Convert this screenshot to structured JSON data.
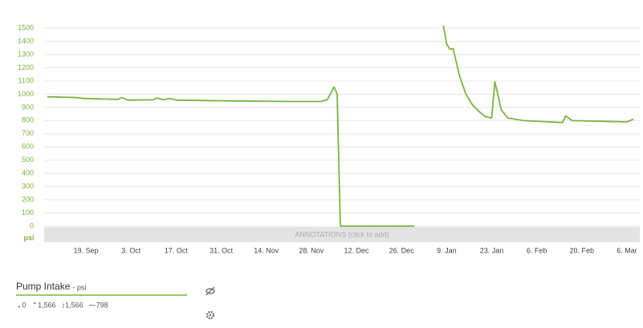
{
  "chart_data": {
    "type": "line",
    "x": [
      "7. Sep",
      "16. Sep",
      "18. Sep",
      "29. Sep",
      "30. Sep",
      "2. Oct",
      "10. Oct",
      "11. Oct",
      "13. Oct",
      "15. Oct",
      "17. Oct",
      "1. Nov",
      "20. Nov",
      "1. Dec",
      "3. Dec",
      "5. Dec",
      "6. Dec",
      "7. Dec",
      "30. Dec",
      "3. Jan",
      "8. Jan",
      "9. Jan",
      "10. Jan",
      "11. Jan",
      "13. Jan",
      "15. Jan",
      "17. Jan",
      "19. Jan",
      "21. Jan",
      "23. Jan",
      "24. Jan",
      "26. Jan",
      "28. Jan",
      "2. Feb",
      "10. Feb",
      "14. Feb",
      "15. Feb",
      "17. Feb",
      "26. Feb",
      "6. Mar",
      "8. Mar"
    ],
    "series": [
      {
        "name": "Pump Intake",
        "color": "#7cb342",
        "values": [
          980,
          975,
          968,
          960,
          975,
          955,
          958,
          972,
          958,
          968,
          955,
          950,
          945,
          945,
          960,
          1055,
          1000,
          0,
          0,
          null,
          1520,
          1380,
          1340,
          1345,
          1140,
          1000,
          920,
          870,
          830,
          820,
          1095,
          880,
          820,
          800,
          790,
          785,
          835,
          800,
          795,
          790,
          810
        ]
      }
    ],
    "unit": "psi",
    "legend_unit": "- psi",
    "stats": [
      "⌄0",
      "⌃1,566",
      "↕1,566",
      "⁓798"
    ],
    "annotation_text": "ANNOTATIONS (click to add)",
    "xlim": [
      "6. Sep",
      "10. Mar"
    ],
    "xticks": [
      "19. Sep",
      "3. Oct",
      "17. Oct",
      "31. Oct",
      "14. Nov",
      "28. Nov",
      "12. Dec",
      "26. Dec",
      "9. Jan",
      "23. Jan",
      "6. Feb",
      "20. Feb",
      "6. Mar"
    ],
    "ylim": [
      0,
      1580
    ],
    "yticks": [
      0,
      100,
      200,
      300,
      400,
      500,
      600,
      700,
      800,
      900,
      1000,
      1100,
      1200,
      1300,
      1400,
      1500
    ],
    "grid": true
  }
}
